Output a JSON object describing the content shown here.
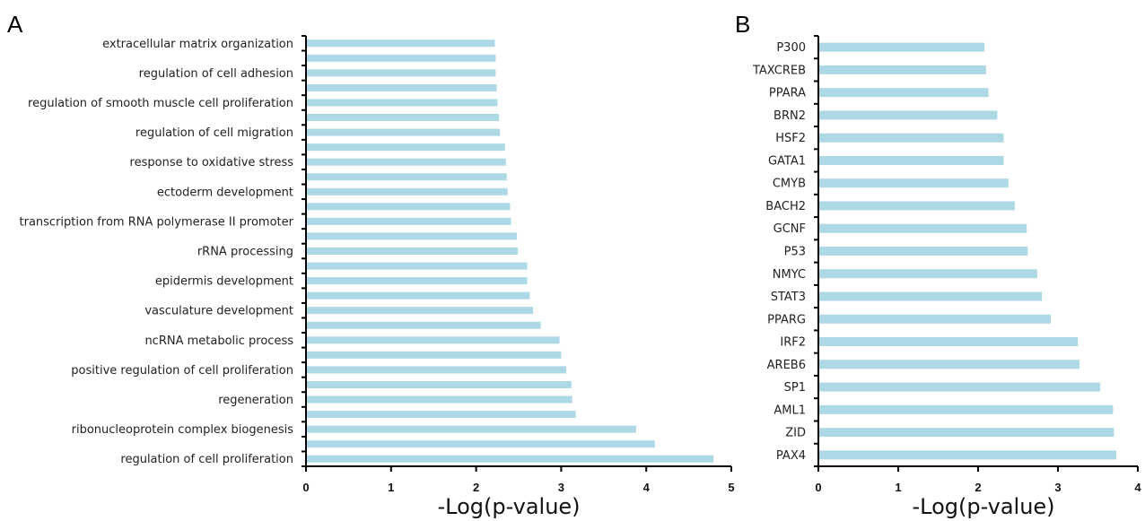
{
  "chart_data": [
    {
      "type": "bar",
      "orientation": "horizontal",
      "panel_label": "A",
      "xlabel": "-Log(p-value)",
      "xlim": [
        0,
        5
      ],
      "xticks": [
        "0",
        "1",
        "2",
        "3",
        "4",
        "5"
      ],
      "bar_color": "#add8e6",
      "categories": [
        "extracellular matrix organization",
        "",
        "regulation of cell adhesion",
        "",
        "regulation of smooth muscle cell proliferation",
        "",
        "regulation of cell migration",
        "",
        "response to oxidative stress",
        "",
        "ectoderm development",
        "",
        "transcription from RNA polymerase II promoter",
        "",
        "rRNA processing",
        "",
        "epidermis development",
        "",
        "vasculature development",
        "",
        "ncRNA metabolic process",
        "",
        "positive regulation of cell proliferation",
        "",
        "regeneration",
        "",
        "ribonucleoprotein complex biogenesis",
        "",
        "regulation of cell proliferation"
      ],
      "values": [
        2.22,
        2.23,
        2.23,
        2.24,
        2.25,
        2.27,
        2.28,
        2.34,
        2.35,
        2.36,
        2.37,
        2.4,
        2.41,
        2.48,
        2.49,
        2.6,
        2.6,
        2.63,
        2.67,
        2.76,
        2.98,
        3.0,
        3.06,
        3.12,
        3.13,
        3.17,
        3.88,
        4.1,
        4.79
      ]
    },
    {
      "type": "bar",
      "orientation": "horizontal",
      "panel_label": "B",
      "xlabel": "-Log(p-value)",
      "xlim": [
        0,
        4
      ],
      "xticks": [
        "0",
        "1",
        "2",
        "3",
        "4"
      ],
      "bar_color": "#add8e6",
      "categories": [
        "P300",
        "TAXCREB",
        "PPARA",
        "BRN2",
        "HSF2",
        "GATA1",
        "CMYB",
        "BACH2",
        "GCNF",
        "P53",
        "NMYC",
        "STAT3",
        "PPARG",
        "IRF2",
        "AREB6",
        "SP1",
        "AML1",
        "ZID",
        "PAX4"
      ],
      "values": [
        2.08,
        2.1,
        2.13,
        2.24,
        2.32,
        2.32,
        2.38,
        2.46,
        2.61,
        2.62,
        2.74,
        2.8,
        2.91,
        3.25,
        3.27,
        3.53,
        3.69,
        3.7,
        3.73
      ]
    }
  ]
}
